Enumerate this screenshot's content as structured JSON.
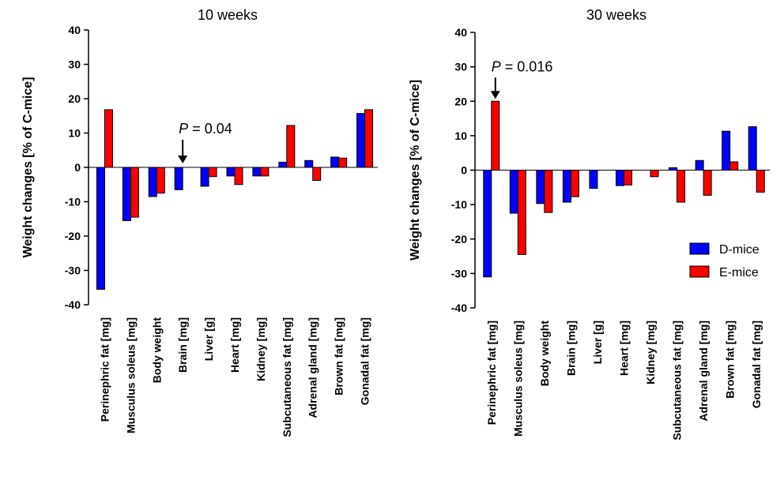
{
  "chart_data": [
    {
      "type": "bar",
      "title": "10 weeks",
      "ylabel": "Weight changes [% of C-mice]",
      "ylim": [
        -40,
        40
      ],
      "yticks": [
        40,
        30,
        20,
        10,
        0,
        -10,
        -20,
        -30,
        -40
      ],
      "categories": [
        "Perinephric fat [mg]",
        "Musculus soleus [mg]",
        "Body weight",
        "Brain [mg]",
        "Liver [g]",
        "Heart [mg]",
        "Kidney [mg]",
        "Subcutaneous fat [mg]",
        "Adrenal gland [mg]",
        "Brown fat [mg]",
        "Gonadal fat [mg]"
      ],
      "series": [
        {
          "name": "D-mice",
          "color": "#0000ff",
          "values": [
            -35.5,
            -15.5,
            -8.5,
            -6.5,
            -5.5,
            -2.5,
            -2.5,
            1.5,
            2,
            3,
            15.7
          ]
        },
        {
          "name": "E-mice",
          "color": "#ff0000",
          "values": [
            16.8,
            -14.5,
            -7.5,
            0,
            -2.7,
            -5,
            -2.5,
            12.2,
            -3.8,
            2.7,
            16.8
          ]
        }
      ],
      "annotation": {
        "p_label": "P",
        "p_value": "= 0.04",
        "category_index": 3
      },
      "legend": null
    },
    {
      "type": "bar",
      "title": "30 weeks",
      "ylabel": "Weight changes [% of C-mice]",
      "ylim": [
        -40,
        40
      ],
      "yticks": [
        40,
        30,
        20,
        10,
        0,
        -10,
        -20,
        -30,
        -40
      ],
      "categories": [
        "Perinephric fat [mg]",
        "Musculus soleus [mg]",
        "Body weight",
        "Brain [mg]",
        "Liver [g]",
        "Heart [mg]",
        "Kidney [mg]",
        "Subcutaneous fat [mg]",
        "Adrenal gland [mg]",
        "Brown fat [mg]",
        "Gonadal fat [mg]"
      ],
      "series": [
        {
          "name": "D-mice",
          "color": "#0000ff",
          "values": [
            -31,
            -12.5,
            -9.7,
            -9.3,
            -5.3,
            -4.5,
            0,
            0.7,
            2.8,
            11.3,
            12.6
          ]
        },
        {
          "name": "E-mice",
          "color": "#ff0000",
          "values": [
            20,
            -24.5,
            -12.3,
            -7.7,
            0,
            -4.3,
            -1.9,
            -9.3,
            -7.3,
            2.4,
            -6.4
          ]
        }
      ],
      "annotation": {
        "p_label": "P",
        "p_value": "= 0.016",
        "category_index": 0
      },
      "legend": {
        "position": "lower-right",
        "entries": [
          "D-mice",
          "E-mice"
        ]
      }
    }
  ]
}
